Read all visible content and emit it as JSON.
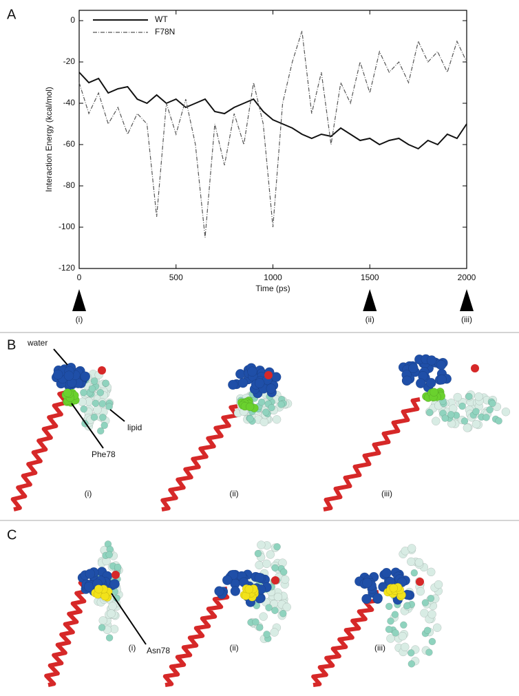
{
  "chart_data": {
    "type": "line",
    "x_label": "Time (ps)",
    "y_label": "Interaction Energy (kcal/mol)",
    "x": [
      0,
      50,
      100,
      150,
      200,
      250,
      300,
      350,
      400,
      450,
      500,
      550,
      600,
      650,
      700,
      750,
      800,
      850,
      900,
      950,
      1000,
      1050,
      1100,
      1150,
      1200,
      1250,
      1300,
      1350,
      1400,
      1450,
      1500,
      1550,
      1600,
      1650,
      1700,
      1750,
      1800,
      1850,
      1900,
      1950,
      2000
    ],
    "series": [
      {
        "name": "WT",
        "color": "#111111",
        "dash": "solid",
        "values": [
          -25,
          -30,
          -28,
          -35,
          -33,
          -32,
          -38,
          -40,
          -36,
          -40,
          -38,
          -42,
          -40,
          -38,
          -44,
          -45,
          -42,
          -40,
          -38,
          -44,
          -48,
          -50,
          -52,
          -55,
          -57,
          -55,
          -56,
          -52,
          -55,
          -58,
          -57,
          -60,
          -58,
          -57,
          -60,
          -62,
          -58,
          -60,
          -55,
          -57,
          -50
        ]
      },
      {
        "name": "F78N",
        "color": "#555555",
        "dash": "dashdot",
        "values": [
          -30,
          -45,
          -35,
          -50,
          -42,
          -55,
          -45,
          -50,
          -95,
          -40,
          -55,
          -38,
          -60,
          -105,
          -50,
          -70,
          -45,
          -60,
          -30,
          -50,
          -100,
          -40,
          -20,
          -5,
          -45,
          -25,
          -60,
          -30,
          -40,
          -20,
          -35,
          -15,
          -25,
          -20,
          -30,
          -10,
          -20,
          -15,
          -25,
          -10,
          -20
        ]
      }
    ],
    "xlim": [
      0,
      2000
    ],
    "xticks": [
      0,
      500,
      1000,
      1500,
      2000
    ],
    "ylim": [
      -120,
      5
    ],
    "yticks": [
      -120,
      -100,
      -80,
      -60,
      -40,
      -20,
      0
    ],
    "legend": "upper left",
    "markers": [
      {
        "x": 0,
        "label": "(i)"
      },
      {
        "x": 1500,
        "label": "(ii)"
      },
      {
        "x": 2000,
        "label": "(iii)"
      }
    ]
  },
  "panel_labels": [
    "A",
    "B",
    "C"
  ],
  "panel_b": {
    "water": "water",
    "residue": "Phe78",
    "lipid": "lipid",
    "frames": [
      "(i)",
      "(ii)",
      "(iii)"
    ]
  },
  "panel_c": {
    "residue": "Asn78",
    "frames": [
      "(i)",
      "(ii)",
      "(iii)"
    ]
  }
}
